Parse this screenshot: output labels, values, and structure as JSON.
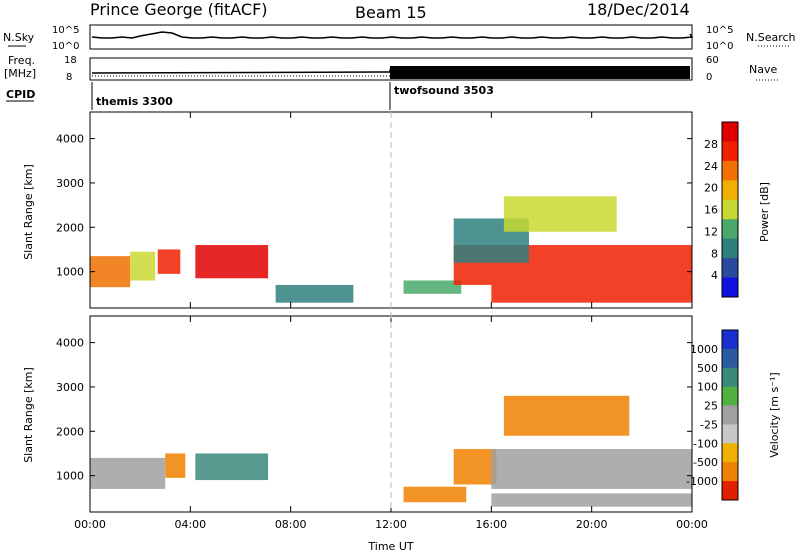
{
  "header": {
    "station": "Prince George (fitACF)",
    "beam": "Beam 15",
    "date": "18/Dec/2014"
  },
  "panels": {
    "nsky_label": "N.Sky",
    "nsearch_label": "N.Search",
    "freq_label": "Freq.",
    "freq_unit": "[MHz]",
    "nave_label": "Nave",
    "cpid_label": "CPID",
    "nsky_ticks": [
      "10^5",
      "10^0"
    ],
    "nsearch_ticks": [
      "10^5",
      "10^0"
    ],
    "freq_ticks": [
      "18",
      "8"
    ],
    "nave_ticks": [
      "60",
      "0"
    ],
    "cpid_segments": [
      "themis 3300",
      "twofsound 3503"
    ]
  },
  "colors": {
    "power_scale": [
      "#1010e0",
      "#2a4aa0",
      "#2f7f7f",
      "#4aa86a",
      "#c8d830",
      "#f0b000",
      "#f07000",
      "#f02000",
      "#e00000"
    ],
    "velocity_scale": [
      "#1a2fd0",
      "#2a5aa0",
      "#3a8a7a",
      "#50b040",
      "#a0a0a0",
      "#c8c8c8",
      "#f0b000",
      "#f08000",
      "#e02000"
    ],
    "ground_scatter": "#bdbdbd"
  },
  "chart_data": [
    {
      "type": "heatmap",
      "name": "power-panel",
      "xlabel": "",
      "ylabel": "Slant Range [km]",
      "colorbar_label": "Power [dB]",
      "colorbar_ticks": [
        "28",
        "24",
        "20",
        "16",
        "12",
        "8",
        "4"
      ],
      "x_ticks": [
        "00:00",
        "04:00",
        "08:00",
        "12:00",
        "16:00",
        "20:00",
        "00:00"
      ],
      "y_ticks": [
        "4000",
        "3000",
        "2000",
        "1000"
      ],
      "xlim_hours": [
        0,
        24
      ],
      "ylim_km": [
        180,
        4600
      ],
      "regions": [
        {
          "t0": 0.0,
          "t1": 1.6,
          "r0": 650,
          "r1": 1350,
          "value": 22
        },
        {
          "t0": 1.6,
          "t1": 2.6,
          "r0": 800,
          "r1": 1450,
          "value": 14
        },
        {
          "t0": 2.7,
          "t1": 3.6,
          "r0": 950,
          "r1": 1500,
          "value": 26
        },
        {
          "t0": 4.2,
          "t1": 7.1,
          "r0": 850,
          "r1": 1600,
          "value": 28
        },
        {
          "t0": 7.4,
          "t1": 10.5,
          "r0": 300,
          "r1": 700,
          "value": 10
        },
        {
          "t0": 12.5,
          "t1": 14.8,
          "r0": 500,
          "r1": 800,
          "value": 12
        },
        {
          "t0": 14.5,
          "t1": 24.0,
          "r0": 700,
          "r1": 1600,
          "value": 24
        },
        {
          "t0": 16.0,
          "t1": 24.0,
          "r0": 300,
          "r1": 700,
          "value": 26
        },
        {
          "t0": 14.5,
          "t1": 17.5,
          "r0": 1200,
          "r1": 2200,
          "value": 10
        },
        {
          "t0": 16.5,
          "t1": 21.0,
          "r0": 1900,
          "r1": 2700,
          "value": 16
        }
      ]
    },
    {
      "type": "heatmap",
      "name": "velocity-panel",
      "xlabel": "Time UT",
      "ylabel": "Slant Range [km]",
      "colorbar_label": "Velocity [m s⁻¹]",
      "colorbar_ticks": [
        "1000",
        "500",
        "100",
        "25",
        "-25",
        "-100",
        "-500",
        "-1000"
      ],
      "x_ticks": [
        "00:00",
        "04:00",
        "08:00",
        "12:00",
        "16:00",
        "20:00",
        "00:00"
      ],
      "y_ticks": [
        "4000",
        "3000",
        "2000",
        "1000"
      ],
      "xlim_hours": [
        0,
        24
      ],
      "ylim_km": [
        180,
        4600
      ],
      "regions": [
        {
          "t0": 0.0,
          "t1": 3.0,
          "r0": 700,
          "r1": 1400,
          "value": 0
        },
        {
          "t0": 3.0,
          "t1": 3.8,
          "r0": 950,
          "r1": 1500,
          "value": -300
        },
        {
          "t0": 4.2,
          "t1": 7.1,
          "r0": 900,
          "r1": 1500,
          "value": 150
        },
        {
          "t0": 12.5,
          "t1": 15.0,
          "r0": 400,
          "r1": 750,
          "value": -150
        },
        {
          "t0": 14.5,
          "t1": 16.2,
          "r0": 800,
          "r1": 1600,
          "value": -300
        },
        {
          "t0": 16.0,
          "t1": 24.0,
          "r0": 700,
          "r1": 1600,
          "value": 0
        },
        {
          "t0": 16.0,
          "t1": 24.0,
          "r0": 300,
          "r1": 600,
          "value": 0
        },
        {
          "t0": 16.5,
          "t1": 21.5,
          "r0": 1900,
          "r1": 2800,
          "value": -300
        }
      ]
    }
  ]
}
